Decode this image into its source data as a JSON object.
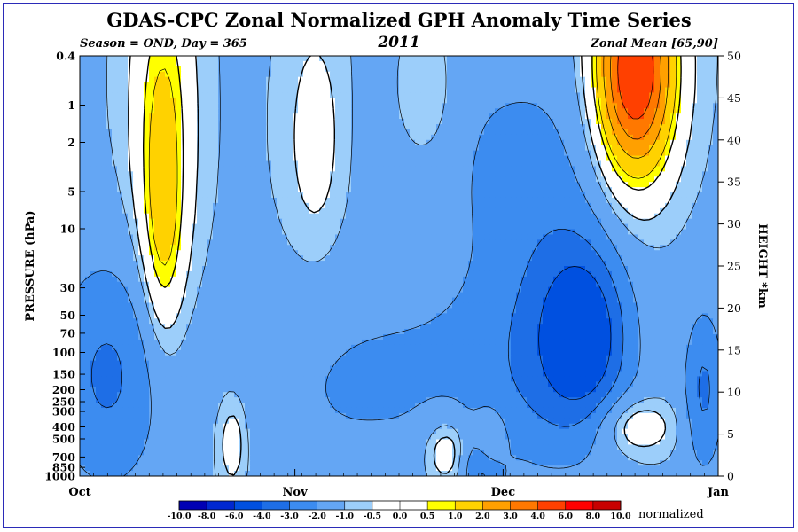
{
  "chart_data": {
    "type": "heatmap",
    "title": "GDAS-CPC Zonal Normalized GPH Anomaly Time Series",
    "subtitle_left": "Season = OND, Day = 365",
    "subtitle_center": "2011",
    "subtitle_right": "Zonal Mean [65,90]",
    "ylabel_left": "PRESSURE (hPa)",
    "ylabel_right": "HEIGHT *km",
    "x_labels": [
      "Oct",
      "Nov",
      "Dec",
      "Jan"
    ],
    "x_days": [
      0,
      31,
      61,
      92
    ],
    "pressure_ticks": [
      "0.4",
      "1",
      "2",
      "5",
      "10",
      "30",
      "50",
      "70",
      "100",
      "150",
      "200",
      "250",
      "300",
      "400",
      "500",
      "700",
      "850",
      "1000"
    ],
    "pressure_values": [
      0.4,
      1,
      2,
      5,
      10,
      30,
      50,
      70,
      100,
      150,
      200,
      250,
      300,
      400,
      500,
      700,
      850,
      1000
    ],
    "height_ticks": [
      "0",
      "5",
      "10",
      "15",
      "20",
      "25",
      "30",
      "35",
      "40",
      "45",
      "50"
    ],
    "height_range": [
      0,
      50
    ],
    "colorbar_labels": [
      "-10.0",
      "-8.0",
      "-6.0",
      "-4.0",
      "-3.0",
      "-2.0",
      "-1.0",
      "-0.5",
      "0.0",
      "0.5",
      "1.0",
      "2.0",
      "3.0",
      "4.0",
      "6.0",
      "8.0",
      "10.0"
    ],
    "colorbar_colors": [
      "#0000b4",
      "#0028d0",
      "#0050e0",
      "#1e6ee6",
      "#3c8cf0",
      "#64a6f4",
      "#9ccefa",
      "#ffffff",
      "#ffffff",
      "#ffff00",
      "#ffd200",
      "#ffa000",
      "#ff7800",
      "#ff4000",
      "#ff0000",
      "#c80000"
    ],
    "colorbar_unit": "normalized",
    "levels": [
      -10,
      -8,
      -6,
      -4,
      -3,
      -2,
      -1,
      -0.5,
      0,
      0.5,
      1,
      2,
      3,
      4,
      6,
      8,
      10
    ],
    "legend": "bottom",
    "features": [
      {
        "day": 80,
        "height": 48,
        "amp": 6.5,
        "sd": 4,
        "sh": 9
      },
      {
        "day": 12,
        "height": 42,
        "amp": 2.2,
        "sd": 3,
        "sh": 14
      },
      {
        "day": 12,
        "height": 27,
        "amp": 1.4,
        "sd": 2,
        "sh": 9
      },
      {
        "day": 59,
        "height": 4,
        "amp": 1.9,
        "sd": 1.5,
        "sh": 2.5
      },
      {
        "day": 53,
        "height": 3,
        "amp": 1.6,
        "sd": 2.5,
        "sh": 3
      },
      {
        "day": 80,
        "height": 6,
        "amp": 1.5,
        "sd": 4,
        "sh": 2.5
      },
      {
        "day": 22,
        "height": 4,
        "amp": 1.2,
        "sd": 1.5,
        "sh": 4
      },
      {
        "day": 34,
        "height": 40,
        "amp": 1.0,
        "sd": 3,
        "sh": 10
      },
      {
        "day": 50,
        "height": 45,
        "amp": 1.0,
        "sd": 3,
        "sh": 6
      },
      {
        "day": 4,
        "height": 12,
        "amp": -2.1,
        "sd": 6,
        "sh": 10
      },
      {
        "day": 68,
        "height": 18,
        "amp": -1.4,
        "sd": 6,
        "sh": 12
      },
      {
        "day": 73,
        "height": 17,
        "amp": -2.8,
        "sd": 4,
        "sh": 7
      },
      {
        "day": 62,
        "height": 38,
        "amp": -1.0,
        "sd": 12,
        "sh": 12
      },
      {
        "day": 36,
        "height": 10,
        "amp": -0.7,
        "sd": 10,
        "sh": 10
      },
      {
        "day": 60,
        "height": 12,
        "amp": -1.0,
        "sd": 15,
        "sh": 8
      },
      {
        "day": 58,
        "height": 1,
        "amp": -2.2,
        "sd": 2,
        "sh": 3
      },
      {
        "day": 90,
        "height": 10,
        "amp": -2.0,
        "sd": 2,
        "sh": 7
      }
    ],
    "base": -1.05
  }
}
